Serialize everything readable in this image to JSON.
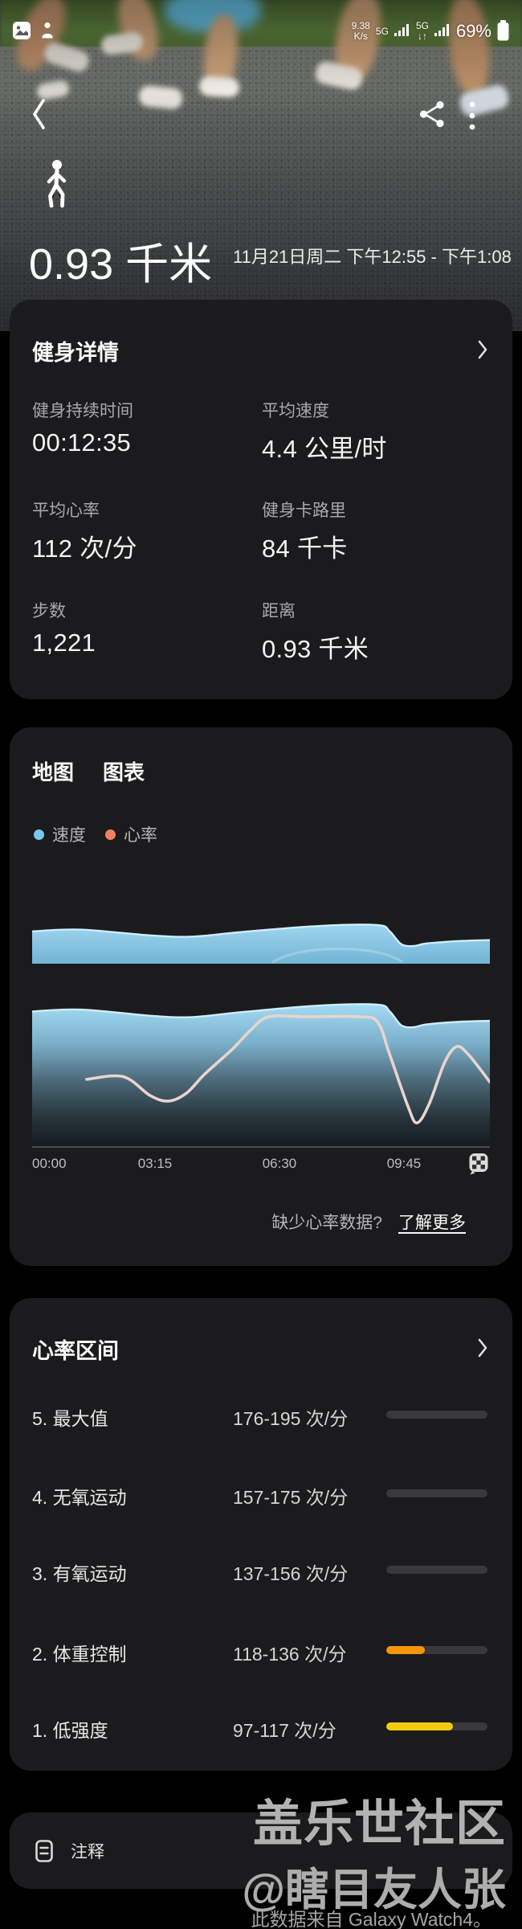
{
  "status_bar": {
    "net_speed": "9.38",
    "net_speed_unit": "K/s",
    "net_type_1": "5G",
    "net_type_2": "5G",
    "updown_arrows": "↓↑",
    "battery_percent": "69%"
  },
  "hero": {
    "activity": "walking",
    "distance": "0.93 千米",
    "datetime_range": "11月21日周二 下午12:55 - 下午1:08"
  },
  "details_card": {
    "title": "健身详情",
    "stats": [
      {
        "label": "健身持续时间",
        "value": "00:12:35"
      },
      {
        "label": "平均速度",
        "value": "4.4 公里/时"
      },
      {
        "label": "平均心率",
        "value": "112 次/分"
      },
      {
        "label": "健身卡路里",
        "value": "84 千卡"
      },
      {
        "label": "步数",
        "value": "1,221"
      },
      {
        "label": "距离",
        "value": "0.93 千米"
      }
    ]
  },
  "chart_card": {
    "tabs": [
      {
        "label": "地图"
      },
      {
        "label": "图表"
      }
    ],
    "legend": [
      {
        "label": "速度",
        "color": "#79C7EE"
      },
      {
        "label": "心率",
        "color": "#F0815B"
      }
    ],
    "missing_hr_text": "缺少心率数据?",
    "learn_more_label": "了解更多"
  },
  "chart_data": {
    "type": "area+line",
    "x_range_s": [
      0,
      755
    ],
    "x_tick_labels": [
      "00:00",
      "03:15",
      "06:30",
      "09:45"
    ],
    "grid": false,
    "legend_position": "top-left",
    "series": [
      {
        "name": "速度",
        "type": "area",
        "unit": "公里/时",
        "color": "#7CC8EE",
        "points": [
          [
            0,
            4.7
          ],
          [
            80,
            4.75
          ],
          [
            199,
            4.58
          ],
          [
            265,
            4.55
          ],
          [
            344,
            4.68
          ],
          [
            477,
            4.86
          ],
          [
            570,
            4.88
          ],
          [
            590,
            4.7
          ],
          [
            609,
            4.33
          ],
          [
            630,
            4.28
          ],
          [
            649,
            4.35
          ],
          [
            700,
            4.42
          ],
          [
            755,
            4.45
          ]
        ]
      },
      {
        "name": "心率",
        "type": "line",
        "unit": "次/分",
        "color": "#E9D4CD",
        "points": [
          [
            90,
            113
          ],
          [
            150,
            114
          ],
          [
            195,
            107
          ],
          [
            225,
            105
          ],
          [
            255,
            108
          ],
          [
            285,
            115
          ],
          [
            330,
            124
          ],
          [
            360,
            131
          ],
          [
            390,
            136
          ],
          [
            450,
            136
          ],
          [
            540,
            136
          ],
          [
            570,
            134
          ],
          [
            590,
            122
          ],
          [
            620,
            103
          ],
          [
            635,
            97
          ],
          [
            655,
            104
          ],
          [
            680,
            119
          ],
          [
            700,
            125
          ],
          [
            720,
            122
          ],
          [
            755,
            112
          ]
        ]
      }
    ]
  },
  "hr_zones_card": {
    "title": "心率区间",
    "zones": [
      {
        "name": "5. 最大值",
        "range": "176-195 次/分",
        "fill": 0,
        "color": "#F6940A"
      },
      {
        "name": "4. 无氧运动",
        "range": "157-175 次/分",
        "fill": 0,
        "color": "#F6940A"
      },
      {
        "name": "3. 有氧运动",
        "range": "137-156 次/分",
        "fill": 0,
        "color": "#F6940A"
      },
      {
        "name": "2. 体重控制",
        "range": "118-136 次/分",
        "fill": 0.38,
        "color": "#F6940A"
      },
      {
        "name": "1. 低强度",
        "range": "97-117 次/分",
        "fill": 0.66,
        "color": "#F5CB11"
      }
    ]
  },
  "notes_card": {
    "label": "注释"
  },
  "watermark": {
    "line1": "盖乐世社区",
    "line2": "@瞎目友人张",
    "line3": "此数据来自 Galaxy Watch4。"
  },
  "icons": {
    "chevron": "›",
    "more": "⋮"
  }
}
